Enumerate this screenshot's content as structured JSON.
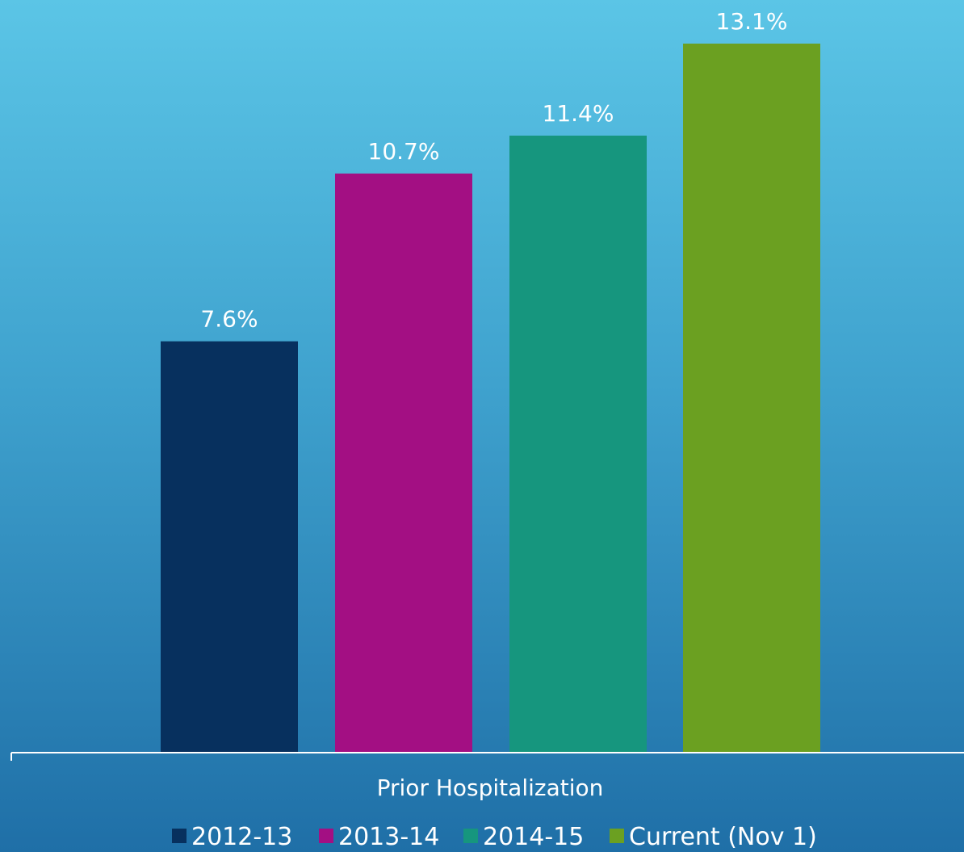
{
  "colors": {
    "axis": "#FFFFFF",
    "text": "#FFFFFF"
  },
  "chart_data": {
    "type": "bar",
    "categories": [
      "Prior Hospitalization"
    ],
    "series": [
      {
        "name": "2012-13",
        "values": [
          7.6
        ],
        "label": "7.6%",
        "color": "#07305E"
      },
      {
        "name": "2013-14",
        "values": [
          10.7
        ],
        "label": "10.7%",
        "color": "#A30F83"
      },
      {
        "name": "2014-15",
        "values": [
          11.4
        ],
        "label": "11.4%",
        "color": "#16967E"
      },
      {
        "name": "Current (Nov 1)",
        "values": [
          13.1
        ],
        "label": "13.1%",
        "color": "#6BA021"
      }
    ],
    "title": "",
    "xlabel": "",
    "ylabel": "",
    "ylim": [
      0,
      13.1
    ],
    "grid": false,
    "legend": "bottom",
    "unit": "%"
  }
}
